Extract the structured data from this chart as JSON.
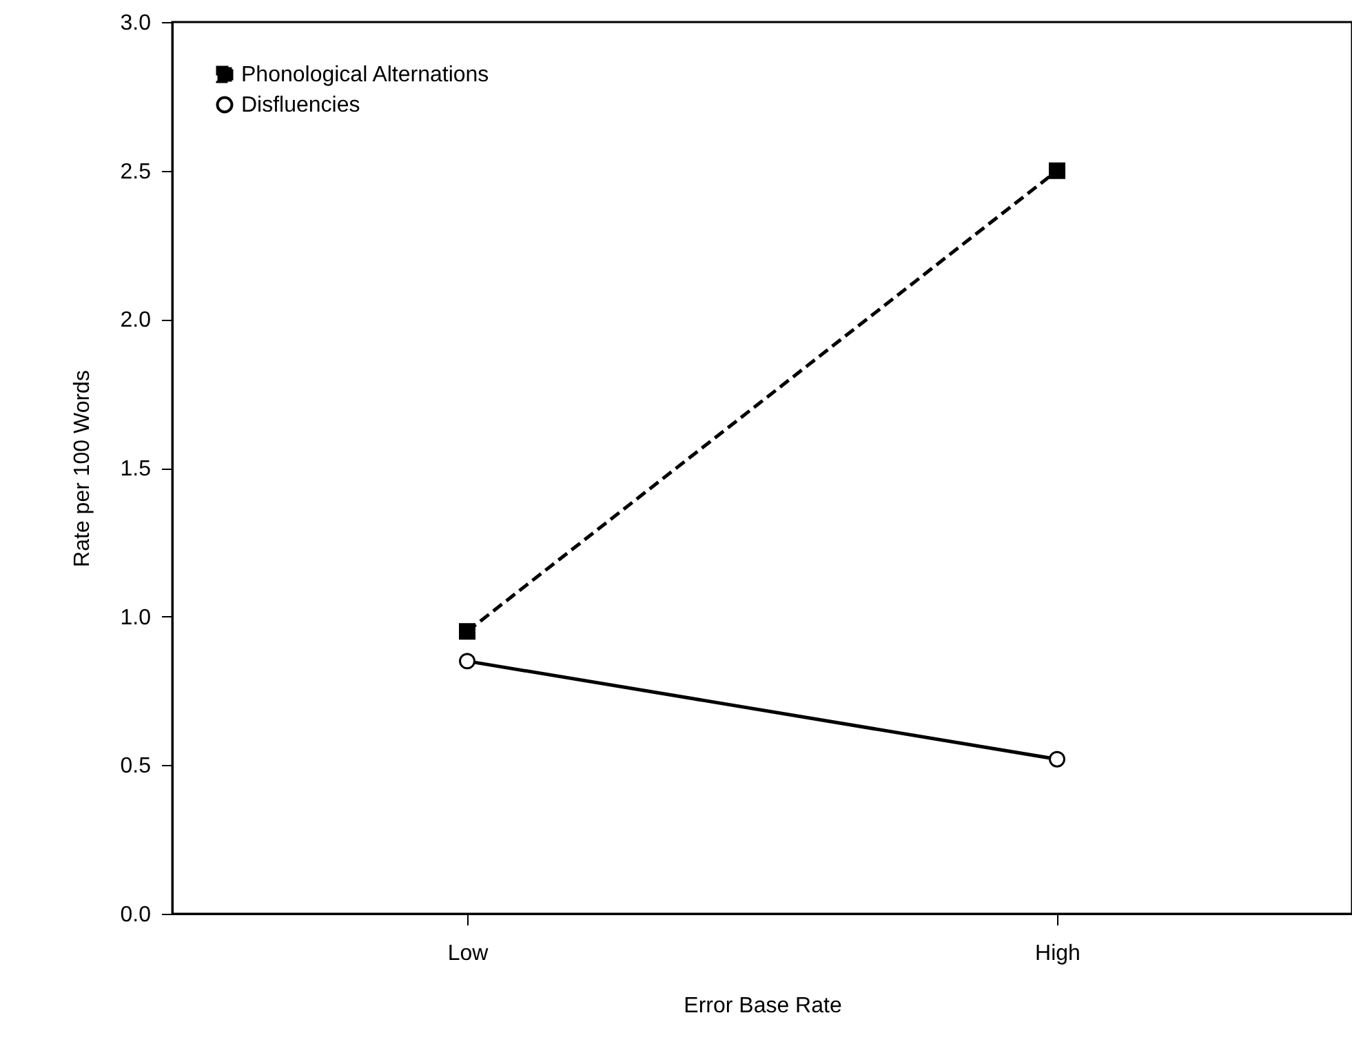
{
  "chart_data": {
    "type": "line",
    "xlabel": "Error Base Rate",
    "ylabel": "Rate per 100 Words",
    "categories": [
      "Low",
      "High"
    ],
    "series": [
      {
        "name": "Phonological Alternations",
        "color": "#000000",
        "values": [
          0.95,
          2.5
        ],
        "marker": "square",
        "line_style": "dashed"
      },
      {
        "name": "Disfluencies",
        "color": "#000000",
        "values": [
          0.85,
          0.52
        ],
        "marker": "circle",
        "line_style": "solid"
      }
    ],
    "ylim": [
      0,
      3
    ],
    "yticks": [
      {
        "value": 0,
        "label": "0.0"
      },
      0.5,
      {
        "value": 1,
        "label": "1.0"
      },
      1.5,
      {
        "value": 2,
        "label": "2.0"
      },
      2.5,
      {
        "value": 3,
        "label": "3.0"
      }
    ],
    "grid": false,
    "legend": "top left"
  }
}
